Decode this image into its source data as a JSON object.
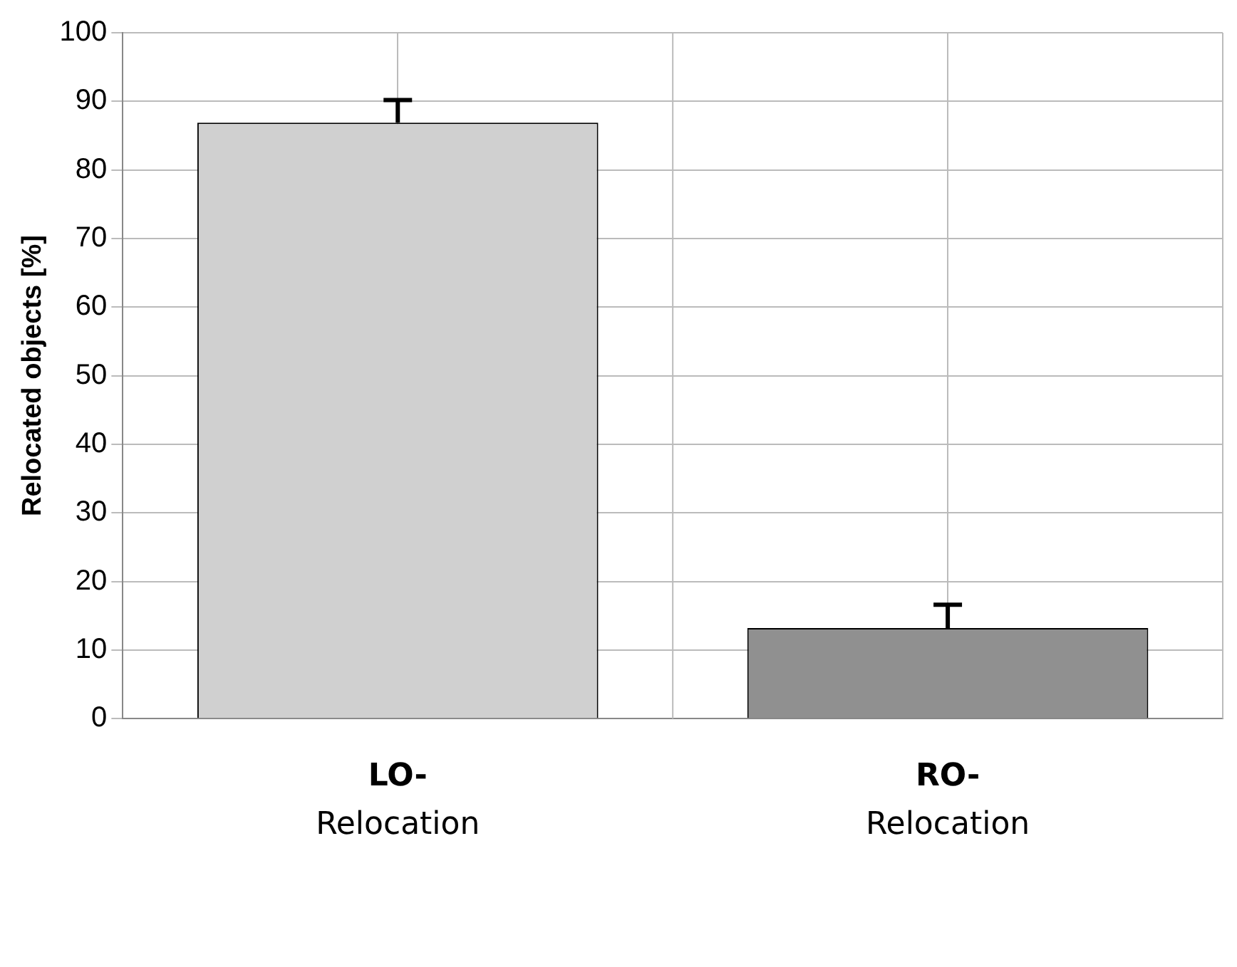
{
  "chart_data": {
    "type": "bar",
    "ylabel": "Relocated objects [%]",
    "categories": [
      "LO- Relocation",
      "RO- Relocation"
    ],
    "values": [
      86.9,
      13.2
    ],
    "colors": [
      "#d0d0d0",
      "#909090"
    ],
    "errors": [
      [
        86.9,
        90.2
      ],
      [
        13.2,
        16.6
      ]
    ],
    "ylim": [
      0,
      100
    ],
    "yticks": [
      0,
      10,
      20,
      30,
      40,
      50,
      60,
      70,
      80,
      90,
      100
    ],
    "grid": true,
    "legend": false
  }
}
